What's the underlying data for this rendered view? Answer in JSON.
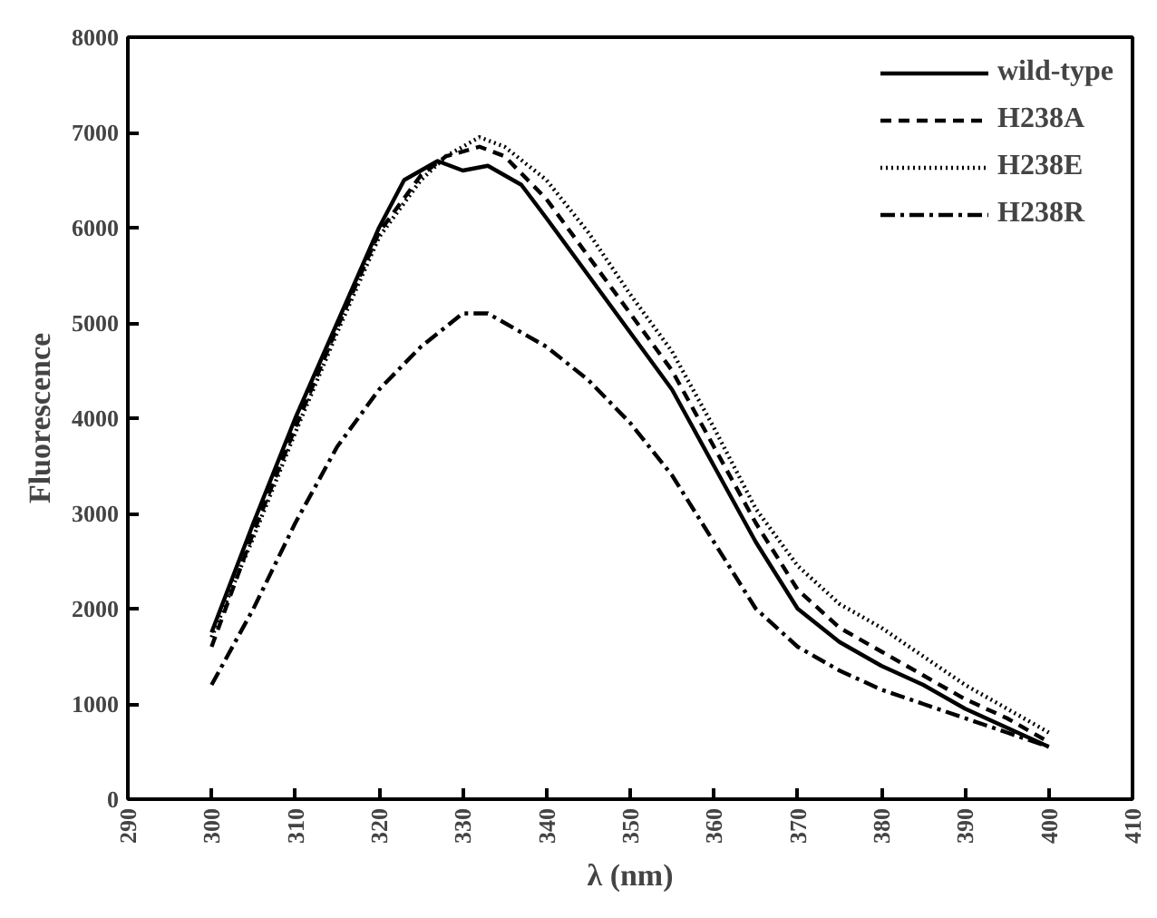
{
  "chart_data": {
    "type": "line",
    "xlabel": "λ (nm)",
    "ylabel": "Fluorescence",
    "xlim": [
      290,
      410
    ],
    "xticks": [
      290,
      300,
      310,
      320,
      330,
      340,
      350,
      360,
      370,
      380,
      390,
      400,
      410
    ],
    "ylim": [
      0,
      8000
    ],
    "yticks": [
      0,
      1000,
      2000,
      3000,
      4000,
      5000,
      6000,
      7000,
      8000
    ],
    "grid": false,
    "legend": "top right",
    "marker": "none",
    "series": [
      {
        "name": "wild-type",
        "color": "#000000",
        "line_style": "solid",
        "x": [
          300,
          305,
          310,
          315,
          320,
          323,
          327,
          330,
          333,
          337,
          340,
          345,
          350,
          355,
          360,
          365,
          370,
          375,
          380,
          385,
          390,
          395,
          400
        ],
        "values": [
          1750,
          2900,
          4000,
          5000,
          6000,
          6500,
          6700,
          6600,
          6650,
          6450,
          6100,
          5500,
          4900,
          4300,
          3500,
          2700,
          2000,
          1650,
          1400,
          1200,
          950,
          750,
          550
        ]
      },
      {
        "name": "H238A",
        "color": "#000000",
        "line_style": "dashed",
        "x": [
          300,
          305,
          310,
          315,
          320,
          325,
          328,
          332,
          335,
          340,
          345,
          350,
          355,
          360,
          365,
          370,
          375,
          380,
          385,
          390,
          395,
          400
        ],
        "values": [
          1600,
          2800,
          3900,
          4950,
          5950,
          6550,
          6750,
          6850,
          6750,
          6300,
          5700,
          5100,
          4500,
          3700,
          2900,
          2200,
          1800,
          1550,
          1300,
          1050,
          850,
          600
        ]
      },
      {
        "name": "H238E",
        "color": "#000000",
        "line_style": "dotted",
        "x": [
          300,
          305,
          310,
          315,
          320,
          325,
          328,
          332,
          335,
          340,
          345,
          350,
          355,
          360,
          365,
          370,
          375,
          380,
          385,
          390,
          395,
          400
        ],
        "values": [
          1700,
          2750,
          3850,
          4900,
          5900,
          6500,
          6750,
          6950,
          6850,
          6500,
          5950,
          5300,
          4700,
          3900,
          3050,
          2450,
          2050,
          1800,
          1500,
          1200,
          950,
          700
        ]
      },
      {
        "name": "H238R",
        "color": "#000000",
        "line_style": "dashdot",
        "x": [
          300,
          305,
          310,
          315,
          320,
          325,
          330,
          333,
          337,
          340,
          345,
          350,
          355,
          360,
          365,
          370,
          375,
          380,
          385,
          390,
          395,
          400
        ],
        "values": [
          1200,
          2000,
          2900,
          3700,
          4300,
          4750,
          5100,
          5100,
          4900,
          4750,
          4400,
          3950,
          3400,
          2700,
          2000,
          1600,
          1350,
          1150,
          1000,
          850,
          700,
          550
        ]
      }
    ]
  }
}
